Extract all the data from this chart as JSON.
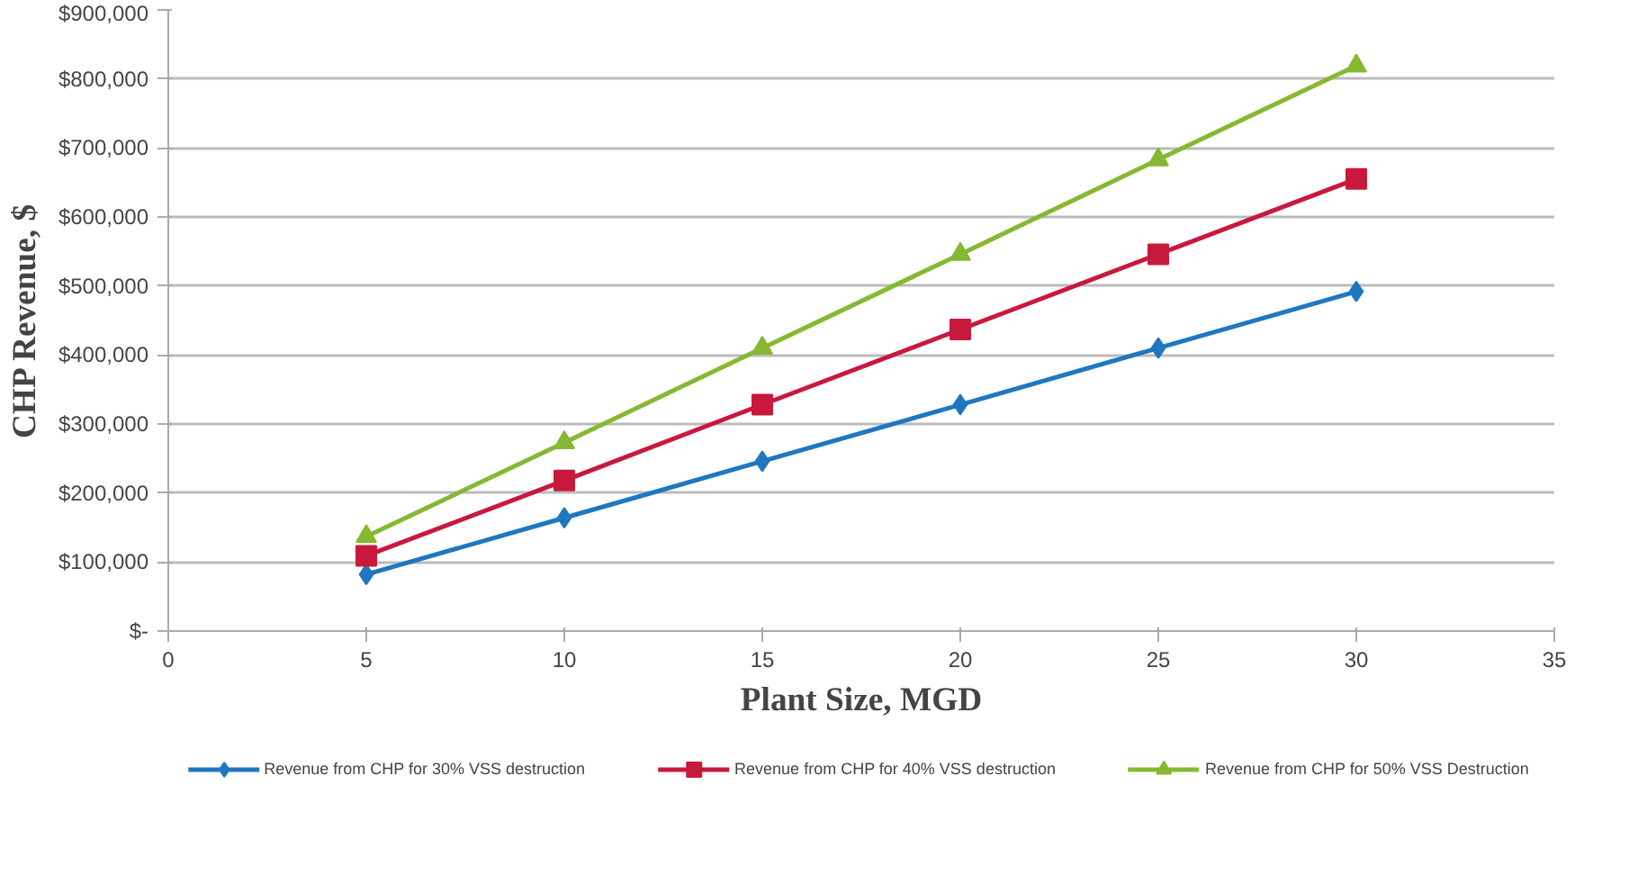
{
  "chart_data": {
    "type": "line",
    "xlabel": "Plant Size, MGD",
    "ylabel": "CHP Revenue, $",
    "x": [
      5,
      10,
      15,
      20,
      25,
      30
    ],
    "series": [
      {
        "name": "Revenue from CHP for 30% VSS destruction",
        "color": "#1f77c0",
        "marker": "diamond",
        "values": [
          82000,
          164000,
          246000,
          328000,
          410000,
          492000
        ]
      },
      {
        "name": "Revenue from CHP for 40% VSS destruction",
        "color": "#c8193c",
        "marker": "square",
        "values": [
          109000,
          218000,
          328000,
          437000,
          546000,
          655000
        ]
      },
      {
        "name": "Revenue from CHP for 50% VSS Destruction",
        "color": "#86b832",
        "marker": "triangle",
        "values": [
          137000,
          273000,
          410000,
          546000,
          683000,
          819000
        ]
      }
    ],
    "xlim": [
      0,
      35
    ],
    "xticks": [
      0,
      5,
      10,
      15,
      20,
      25,
      30,
      35
    ],
    "ylim": [
      0,
      900000
    ],
    "yticks": [
      {
        "value": 0,
        "label": "$-"
      },
      {
        "value": 100000,
        "label": "$100,000"
      },
      {
        "value": 200000,
        "label": "$200,000"
      },
      {
        "value": 300000,
        "label": "$300,000"
      },
      {
        "value": 400000,
        "label": "$400,000"
      },
      {
        "value": 500000,
        "label": "$500,000"
      },
      {
        "value": 600000,
        "label": "$600,000"
      },
      {
        "value": 700000,
        "label": "$700,000"
      },
      {
        "value": 800000,
        "label": "$800,000"
      },
      {
        "value": 900000,
        "label": "$900,000"
      }
    ],
    "grid": "y",
    "legend": "bottom",
    "line_style": "solid"
  }
}
